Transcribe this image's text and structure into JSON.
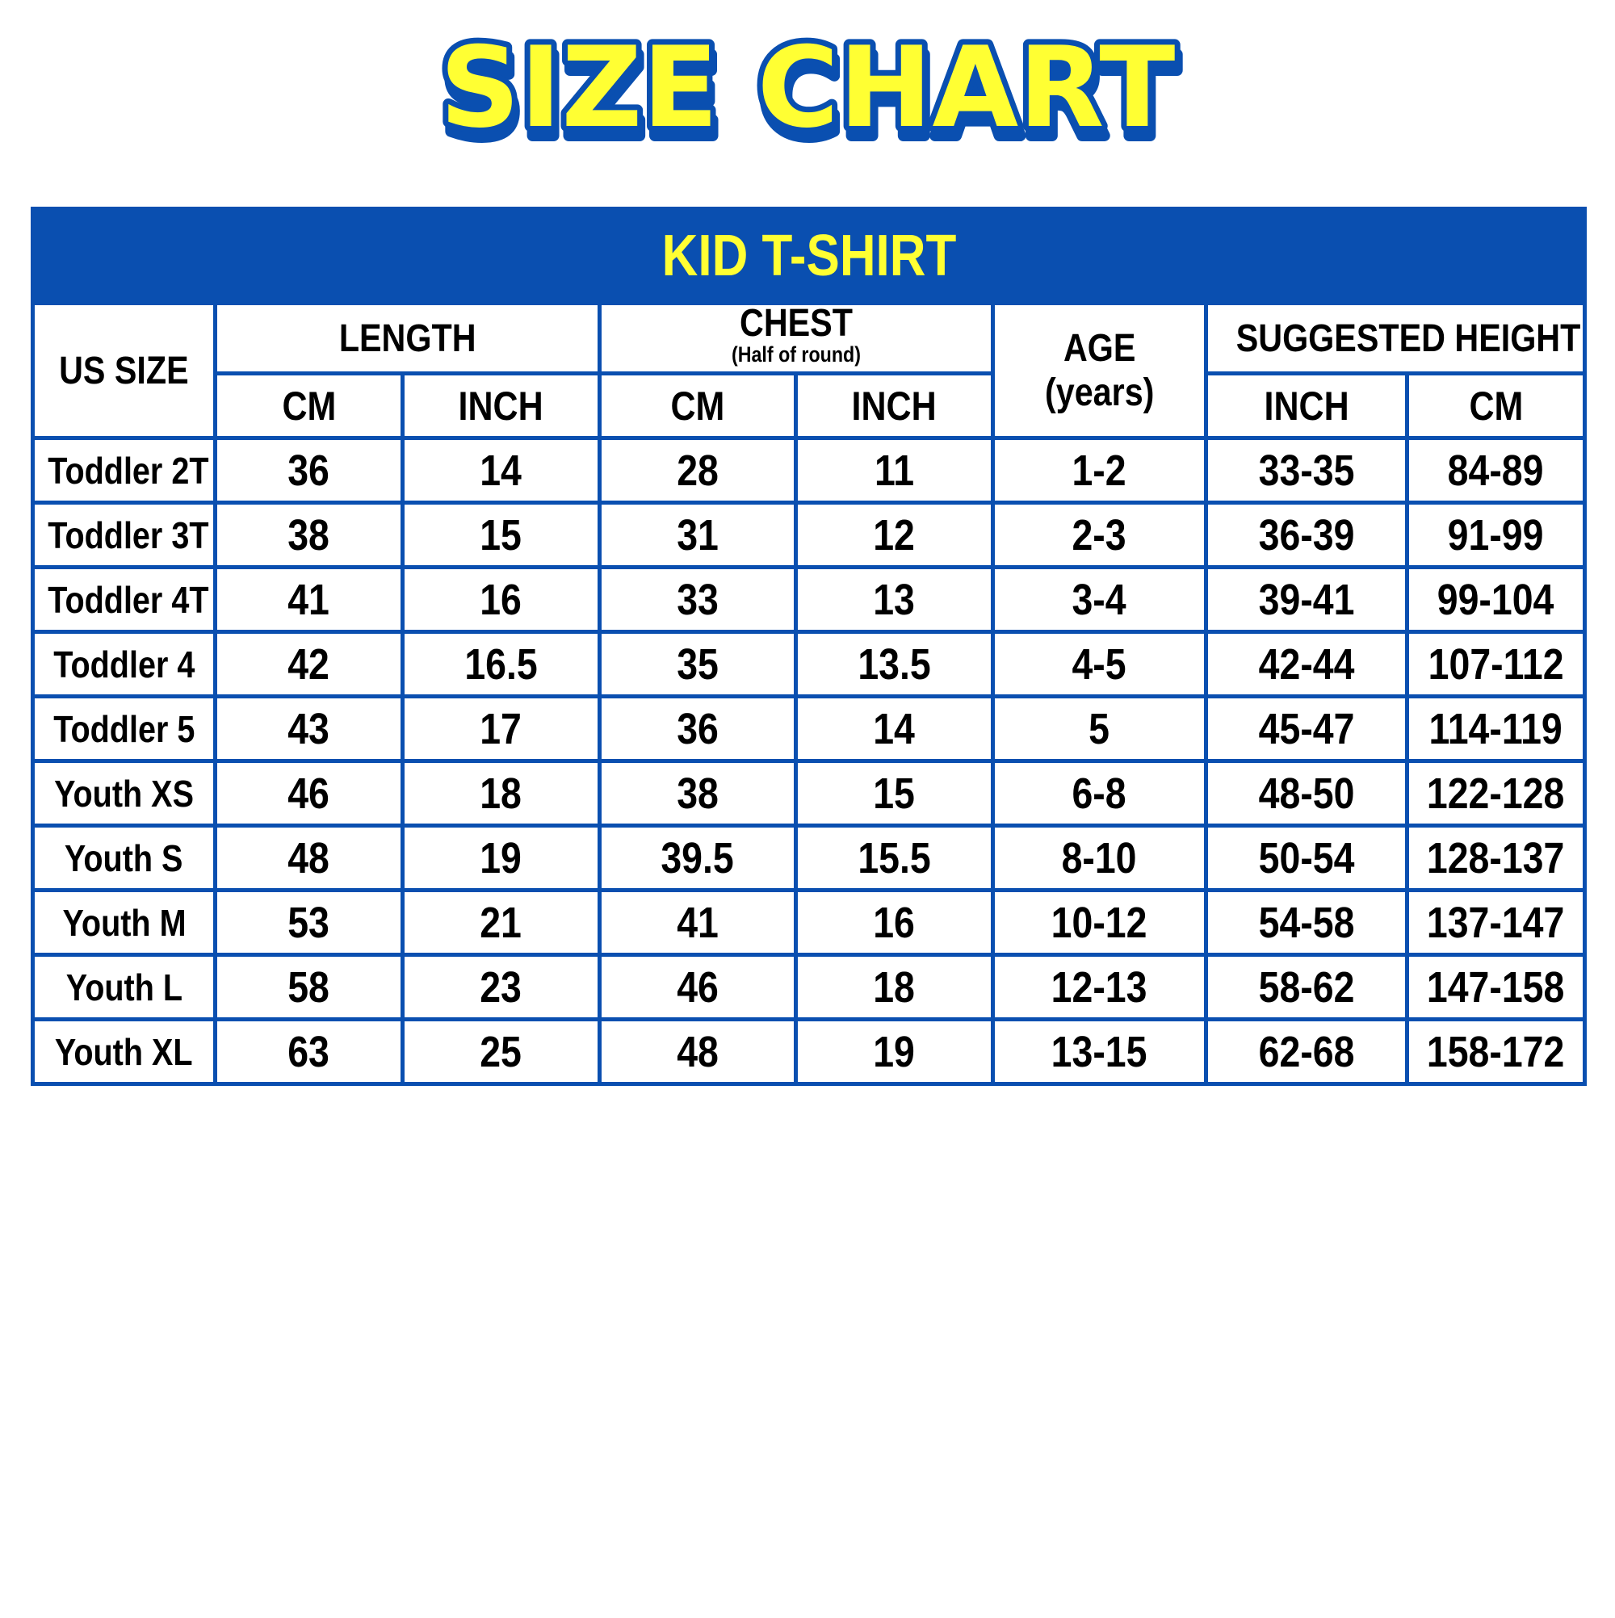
{
  "title": "SIZE CHART",
  "colors": {
    "brand_blue": "#0a4fb0",
    "title_yellow": "#ffff33"
  },
  "table": {
    "caption": "KID T-SHIRT",
    "headers": {
      "us_size": "US SIZE",
      "length": "LENGTH",
      "chest": "CHEST",
      "chest_note": "(Half of round)",
      "age": "AGE",
      "age_unit": "(years)",
      "height": "SUGGESTED HEIGHT",
      "length_cm": "CM",
      "length_inch": "INCH",
      "chest_cm": "CM",
      "chest_inch": "INCH",
      "height_inch": "INCH",
      "height_cm": "CM"
    },
    "rows": [
      [
        "Toddler 2T",
        "36",
        "14",
        "28",
        "11",
        "1-2",
        "33-35",
        "84-89"
      ],
      [
        "Toddler 3T",
        "38",
        "15",
        "31",
        "12",
        "2-3",
        "36-39",
        "91-99"
      ],
      [
        "Toddler 4T",
        "41",
        "16",
        "33",
        "13",
        "3-4",
        "39-41",
        "99-104"
      ],
      [
        "Toddler 4",
        "42",
        "16.5",
        "35",
        "13.5",
        "4-5",
        "42-44",
        "107-112"
      ],
      [
        "Toddler 5",
        "43",
        "17",
        "36",
        "14",
        "5",
        "45-47",
        "114-119"
      ],
      [
        "Youth XS",
        "46",
        "18",
        "38",
        "15",
        "6-8",
        "48-50",
        "122-128"
      ],
      [
        "Youth S",
        "48",
        "19",
        "39.5",
        "15.5",
        "8-10",
        "50-54",
        "128-137"
      ],
      [
        "Youth M",
        "53",
        "21",
        "41",
        "16",
        "10-12",
        "54-58",
        "137-147"
      ],
      [
        "Youth L",
        "58",
        "23",
        "46",
        "18",
        "12-13",
        "58-62",
        "147-158"
      ],
      [
        "Youth XL",
        "63",
        "25",
        "48",
        "19",
        "13-15",
        "62-68",
        "158-172"
      ]
    ]
  }
}
